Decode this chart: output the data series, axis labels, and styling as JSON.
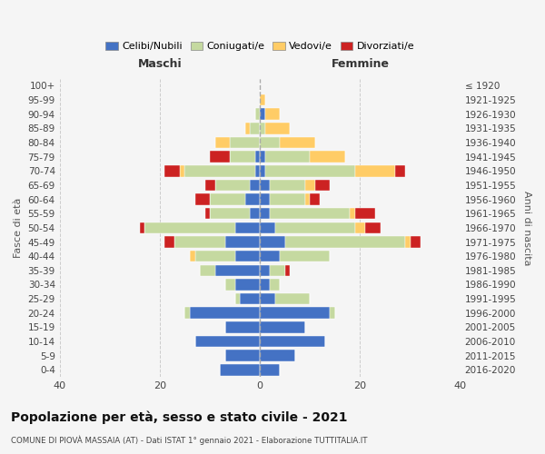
{
  "age_groups": [
    "0-4",
    "5-9",
    "10-14",
    "15-19",
    "20-24",
    "25-29",
    "30-34",
    "35-39",
    "40-44",
    "45-49",
    "50-54",
    "55-59",
    "60-64",
    "65-69",
    "70-74",
    "75-79",
    "80-84",
    "85-89",
    "90-94",
    "95-99",
    "100+"
  ],
  "birth_years": [
    "2016-2020",
    "2011-2015",
    "2006-2010",
    "2001-2005",
    "1996-2000",
    "1991-1995",
    "1986-1990",
    "1981-1985",
    "1976-1980",
    "1971-1975",
    "1966-1970",
    "1961-1965",
    "1956-1960",
    "1951-1955",
    "1946-1950",
    "1941-1945",
    "1936-1940",
    "1931-1935",
    "1926-1930",
    "1921-1925",
    "≤ 1920"
  ],
  "maschi": {
    "celibi": [
      8,
      7,
      13,
      7,
      14,
      4,
      5,
      9,
      5,
      7,
      5,
      2,
      3,
      2,
      1,
      1,
      0,
      0,
      0,
      0,
      0
    ],
    "coniugati": [
      0,
      0,
      0,
      0,
      1,
      1,
      2,
      3,
      8,
      10,
      18,
      8,
      7,
      7,
      14,
      5,
      6,
      2,
      1,
      0,
      0
    ],
    "vedovi": [
      0,
      0,
      0,
      0,
      0,
      0,
      0,
      0,
      1,
      0,
      0,
      0,
      0,
      0,
      1,
      0,
      3,
      1,
      0,
      0,
      0
    ],
    "divorziati": [
      0,
      0,
      0,
      0,
      0,
      0,
      0,
      0,
      0,
      2,
      1,
      1,
      3,
      2,
      3,
      4,
      0,
      0,
      0,
      0,
      0
    ]
  },
  "femmine": {
    "nubili": [
      4,
      7,
      13,
      9,
      14,
      3,
      2,
      2,
      4,
      5,
      3,
      2,
      2,
      2,
      1,
      1,
      0,
      0,
      1,
      0,
      0
    ],
    "coniugate": [
      0,
      0,
      0,
      0,
      1,
      7,
      2,
      3,
      10,
      24,
      16,
      16,
      7,
      7,
      18,
      9,
      4,
      1,
      0,
      0,
      0
    ],
    "vedove": [
      0,
      0,
      0,
      0,
      0,
      0,
      0,
      0,
      0,
      1,
      2,
      1,
      1,
      2,
      8,
      7,
      7,
      5,
      3,
      1,
      0
    ],
    "divorziate": [
      0,
      0,
      0,
      0,
      0,
      0,
      0,
      1,
      0,
      2,
      3,
      4,
      2,
      3,
      2,
      0,
      0,
      0,
      0,
      0,
      0
    ]
  },
  "colors": {
    "celibi": "#4472C4",
    "coniugati": "#C5D9A0",
    "vedovi": "#FFCC66",
    "divorziati": "#CC2222"
  },
  "xlim": 40,
  "title": "Popolazione per età, sesso e stato civile - 2021",
  "subtitle": "COMUNE DI PIOVÀ MASSAIA (AT) - Dati ISTAT 1° gennaio 2021 - Elaborazione TUTTITALIA.IT",
  "xlabel_left": "Maschi",
  "xlabel_right": "Femmine",
  "ylabel_left": "Fasce di età",
  "ylabel_right": "Anni di nascita",
  "legend_labels": [
    "Celibi/Nubili",
    "Coniugati/e",
    "Vedovi/e",
    "Divorziati/e"
  ],
  "background_color": "#f5f5f5"
}
